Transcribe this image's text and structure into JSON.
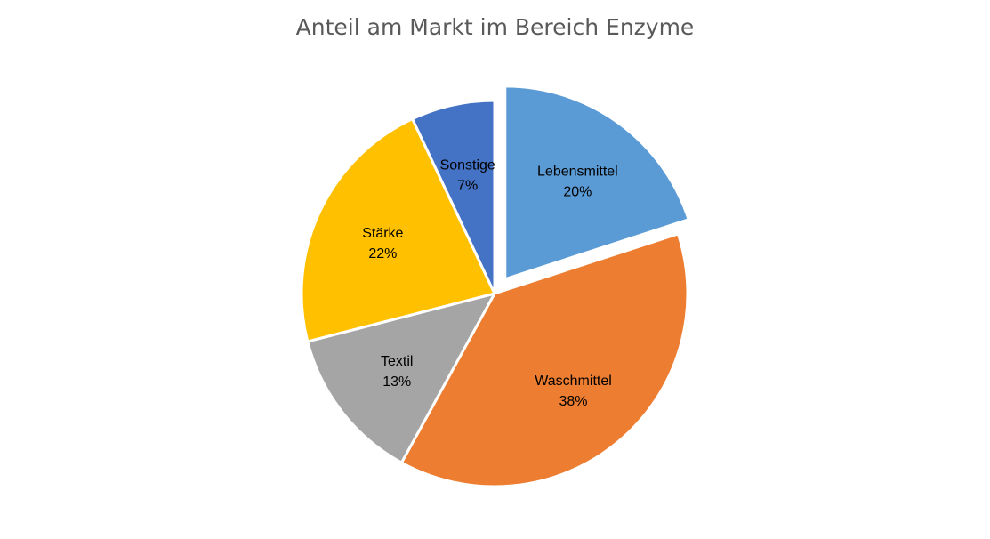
{
  "chart_data": {
    "type": "pie",
    "title": "Anteil am Markt im Bereich Enzyme",
    "categories": [
      "Lebensmittel",
      "Waschmittel",
      "Textil",
      "Stärke",
      "Sonstige"
    ],
    "values": [
      20,
      38,
      13,
      22,
      7
    ],
    "value_labels": [
      "20%",
      "38%",
      "13%",
      "22%",
      "7%"
    ],
    "colors": [
      "#5B9BD5",
      "#ED7D31",
      "#A5A5A5",
      "#FFC000",
      "#4472C4"
    ],
    "exploded": [
      "Lebensmittel"
    ],
    "legend": "none",
    "start_angle": "12 o'clock, clockwise"
  }
}
